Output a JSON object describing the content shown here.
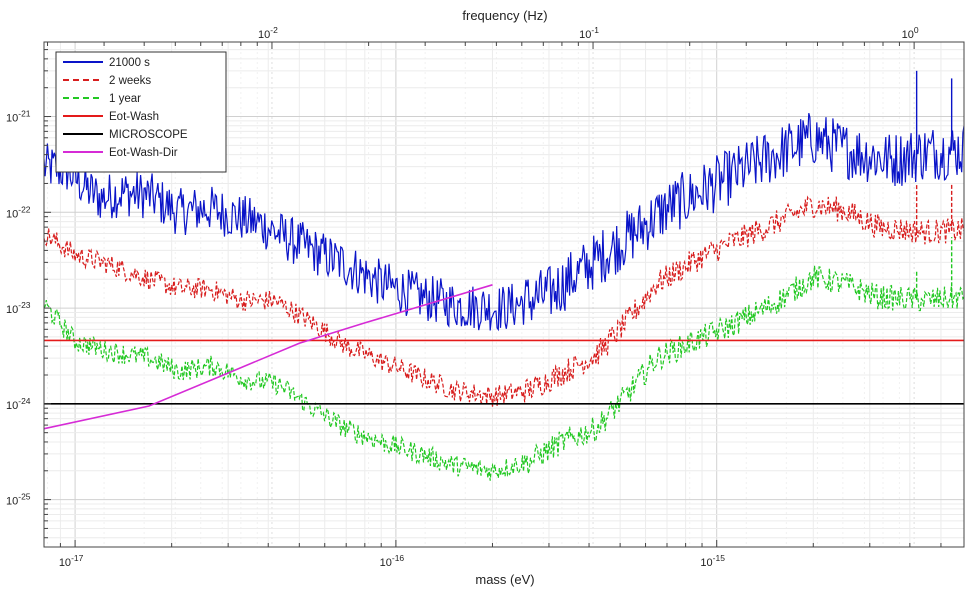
{
  "chart_data": {
    "type": "line",
    "xlabel": "mass (eV)",
    "x2label": "frequency (Hz)",
    "x_scale": "log",
    "y_scale": "log",
    "xlim": [
      8e-18,
      5.9e-15
    ],
    "ylim": [
      3.2e-26,
      6e-21
    ],
    "x2lim": [
      0.00195,
      1.43
    ],
    "x_ticks": [
      {
        "value": 1e-17,
        "label": "10-17",
        "base": "10",
        "exp": "-17"
      },
      {
        "value": 1e-16,
        "label": "10-16",
        "base": "10",
        "exp": "-16"
      },
      {
        "value": 1e-15,
        "label": "10-15",
        "base": "10",
        "exp": "-15"
      }
    ],
    "x2_ticks": [
      {
        "value": 0.01,
        "label": "10-2",
        "base": "10",
        "exp": "-2"
      },
      {
        "value": 0.1,
        "label": "10-1",
        "base": "10",
        "exp": "-1"
      },
      {
        "value": 1,
        "label": "100",
        "base": "10",
        "exp": "0"
      }
    ],
    "y_ticks": [
      {
        "value": 1e-25,
        "label": "10-25",
        "base": "10",
        "exp": "-25"
      },
      {
        "value": 1e-24,
        "label": "10-24",
        "base": "10",
        "exp": "-24"
      },
      {
        "value": 1e-23,
        "label": "10-23",
        "base": "10",
        "exp": "-23"
      },
      {
        "value": 1e-22,
        "label": "10-22",
        "base": "10",
        "exp": "-22"
      },
      {
        "value": 1e-21,
        "label": "10-21",
        "base": "10",
        "exp": "-21"
      }
    ],
    "grid": true,
    "legend_position": "top-left",
    "series": [
      {
        "name": "21000 s",
        "color": "#0a14c8",
        "style": "solid",
        "noise": 0.5,
        "x": [
          8e-18,
          9.5e-18,
          1.1e-17,
          1.2e-17,
          1.4e-17,
          1.7e-17,
          2.1e-17,
          2.6e-17,
          3.2e-17,
          3.8e-17,
          4.5e-17,
          5.5e-17,
          7e-17,
          9e-17,
          1.2e-16,
          1.6e-16,
          2.2e-16,
          3e-16,
          4e-16,
          5.5e-16,
          7e-16,
          1e-15,
          1.4e-15,
          2e-15,
          2.5e-15,
          3.5e-15,
          4.5e-15,
          5.9e-15
        ],
        "y": [
          3e-22,
          2.7e-22,
          1.7e-22,
          1.4e-22,
          1.6e-22,
          1.5e-22,
          1e-22,
          1.1e-22,
          9e-23,
          7.5e-23,
          5.5e-23,
          4e-23,
          2.8e-23,
          1.8e-23,
          1.3e-23,
          1.05e-23,
          1e-23,
          1.4e-23,
          2.8e-23,
          6e-23,
          1.1e-22,
          2e-22,
          3.5e-22,
          6e-22,
          4.5e-22,
          3.5e-22,
          4.2e-22,
          4.5e-22
        ]
      },
      {
        "name": "2 weeks",
        "color": "#d81e1e",
        "style": "dashed",
        "noise": 0.22,
        "x": [
          8e-18,
          1e-17,
          1.3e-17,
          1.7e-17,
          2.1e-17,
          2.6e-17,
          3.3e-17,
          4.2e-17,
          5.5e-17,
          7e-17,
          9e-17,
          1.2e-16,
          1.5e-16,
          2e-16,
          2.6e-16,
          3.3e-16,
          4.2e-16,
          5.2e-16,
          6.5e-16,
          8.5e-16,
          1.1e-15,
          1.5e-15,
          2e-15,
          2.5e-15,
          3.2e-15,
          4.5e-15,
          5.9e-15
        ],
        "y": [
          6e-23,
          3.6e-23,
          2.8e-23,
          2e-23,
          1.6e-23,
          1.6e-23,
          1.2e-23,
          1.2e-23,
          7e-24,
          4e-24,
          2.8e-24,
          1.9e-24,
          1.4e-24,
          1.2e-24,
          1.4e-24,
          2.1e-24,
          3.2e-24,
          7e-24,
          1.8e-23,
          3.1e-23,
          4.8e-23,
          7.5e-23,
          1.2e-22,
          1.05e-22,
          7e-23,
          6.2e-23,
          6.5e-23
        ]
      },
      {
        "name": "1 year",
        "color": "#22c822",
        "style": "dashed",
        "noise": 0.22,
        "x": [
          8e-18,
          1e-17,
          1.3e-17,
          1.7e-17,
          2.1e-17,
          2.7e-17,
          3.4e-17,
          4.3e-17,
          5.5e-17,
          7e-17,
          9e-17,
          1.2e-16,
          1.5e-16,
          2e-16,
          2.6e-16,
          3.3e-16,
          4.2e-16,
          5.2e-16,
          6.5e-16,
          8.5e-16,
          1.1e-15,
          1.5e-15,
          2e-15,
          2.5e-15,
          3.2e-15,
          4.5e-15,
          5.9e-15
        ],
        "y": [
          1.1e-23,
          4.5e-24,
          3.5e-24,
          3e-24,
          2.2e-24,
          2.5e-24,
          1.8e-24,
          1.6e-24,
          9e-25,
          5.5e-25,
          4e-25,
          3e-25,
          2.3e-25,
          2e-25,
          2.5e-25,
          4e-25,
          5.5e-25,
          1.2e-24,
          3e-24,
          4.5e-24,
          6.5e-24,
          1.1e-23,
          2.1e-23,
          1.8e-23,
          1.3e-23,
          1.2e-23,
          1.3e-23
        ]
      },
      {
        "name": "Eot-Wash",
        "color": "#e41a1a",
        "style": "solid",
        "noise": 0,
        "x": [
          8e-18,
          5.9e-15
        ],
        "y": [
          4.6e-24,
          4.6e-24
        ]
      },
      {
        "name": "MICROSCOPE",
        "color": "#000000",
        "style": "solid",
        "noise": 0,
        "x": [
          8e-18,
          5.9e-15
        ],
        "y": [
          1e-24,
          1e-24
        ]
      },
      {
        "name": "Eot-Wash-Dir",
        "color": "#d62bd6",
        "style": "solid",
        "noise": 0,
        "x": [
          8e-18,
          1.7e-17,
          3e-17,
          5e-17,
          8e-17,
          1.2e-16,
          2e-16
        ],
        "y": [
          5.5e-25,
          9.5e-25,
          2.1e-24,
          4.3e-24,
          7e-24,
          1.05e-23,
          1.75e-23
        ]
      }
    ],
    "spikes": [
      {
        "series": "21000 s",
        "x": 4.2e-15,
        "y": 3e-21
      },
      {
        "series": "21000 s",
        "x": 5.4e-15,
        "y": 2.5e-21
      },
      {
        "series": "2 weeks",
        "x": 4.2e-15,
        "y": 2e-22
      },
      {
        "series": "2 weeks",
        "x": 5.4e-15,
        "y": 2e-22
      },
      {
        "series": "1 year",
        "x": 4.2e-15,
        "y": 2.5e-23
      },
      {
        "series": "1 year",
        "x": 5.4e-15,
        "y": 5.5e-23
      }
    ]
  }
}
